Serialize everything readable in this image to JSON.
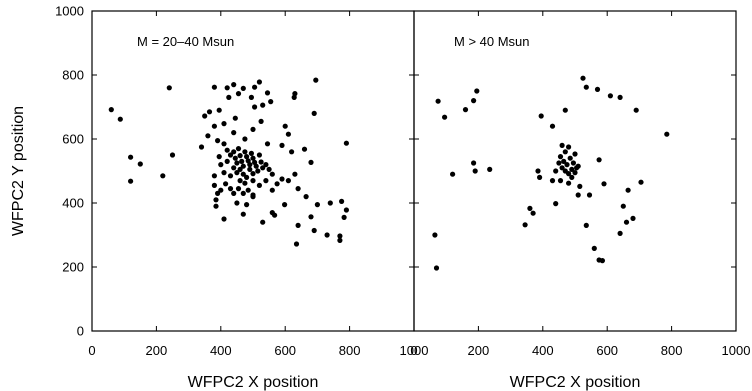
{
  "chart_data": [
    {
      "type": "scatter",
      "annotation": "M = 20–40 Msun",
      "xlabel": "WFPC2 X position",
      "ylabel": "WFPC2 Y position",
      "xlim": [
        0,
        1000
      ],
      "ylim": [
        0,
        1000
      ],
      "xticks": [
        "0",
        "200",
        "400",
        "600",
        "800",
        "1000"
      ],
      "yticks": [
        "0",
        "200",
        "400",
        "600",
        "800",
        "1000"
      ],
      "grid": false,
      "marker_color": "#000000",
      "points": [
        [
          60,
          692
        ],
        [
          88,
          662
        ],
        [
          240,
          760
        ],
        [
          350,
          672
        ],
        [
          380,
          762
        ],
        [
          420,
          760
        ],
        [
          425,
          730
        ],
        [
          440,
          770
        ],
        [
          455,
          742
        ],
        [
          470,
          758
        ],
        [
          505,
          762
        ],
        [
          520,
          778
        ],
        [
          545,
          744
        ],
        [
          495,
          730
        ],
        [
          505,
          700
        ],
        [
          530,
          706
        ],
        [
          555,
          717
        ],
        [
          630,
          742
        ],
        [
          628,
          730
        ],
        [
          695,
          784
        ],
        [
          690,
          680
        ],
        [
          395,
          690
        ],
        [
          365,
          685
        ],
        [
          380,
          640
        ],
        [
          410,
          648
        ],
        [
          445,
          665
        ],
        [
          440,
          620
        ],
        [
          500,
          630
        ],
        [
          525,
          655
        ],
        [
          600,
          640
        ],
        [
          610,
          615
        ],
        [
          120,
          543
        ],
        [
          150,
          522
        ],
        [
          250,
          550
        ],
        [
          220,
          485
        ],
        [
          120,
          468
        ],
        [
          340,
          575
        ],
        [
          360,
          610
        ],
        [
          390,
          595
        ],
        [
          410,
          585
        ],
        [
          475,
          600
        ],
        [
          545,
          585
        ],
        [
          590,
          580
        ],
        [
          620,
          560
        ],
        [
          660,
          568
        ],
        [
          680,
          527
        ],
        [
          790,
          587
        ],
        [
          420,
          565
        ],
        [
          430,
          550
        ],
        [
          440,
          560
        ],
        [
          445,
          540
        ],
        [
          450,
          525
        ],
        [
          455,
          570
        ],
        [
          460,
          548
        ],
        [
          465,
          530
        ],
        [
          470,
          515
        ],
        [
          475,
          560
        ],
        [
          480,
          545
        ],
        [
          485,
          532
        ],
        [
          490,
          520
        ],
        [
          495,
          555
        ],
        [
          500,
          540
        ],
        [
          505,
          527
        ],
        [
          510,
          515
        ],
        [
          515,
          500
        ],
        [
          520,
          550
        ],
        [
          525,
          528
        ],
        [
          530,
          510
        ],
        [
          440,
          510
        ],
        [
          450,
          495
        ],
        [
          460,
          505
        ],
        [
          470,
          490
        ],
        [
          480,
          480
        ],
        [
          490,
          505
        ],
        [
          500,
          492
        ],
        [
          460,
          470
        ],
        [
          475,
          462
        ],
        [
          500,
          470
        ],
        [
          430,
          485
        ],
        [
          410,
          495
        ],
        [
          400,
          520
        ],
        [
          395,
          545
        ],
        [
          420,
          530
        ],
        [
          540,
          520
        ],
        [
          550,
          505
        ],
        [
          560,
          490
        ],
        [
          380,
          485
        ],
        [
          380,
          455
        ],
        [
          390,
          430
        ],
        [
          400,
          440
        ],
        [
          415,
          460
        ],
        [
          430,
          445
        ],
        [
          440,
          430
        ],
        [
          455,
          445
        ],
        [
          470,
          430
        ],
        [
          485,
          440
        ],
        [
          500,
          425
        ],
        [
          520,
          455
        ],
        [
          540,
          470
        ],
        [
          560,
          440
        ],
        [
          575,
          460
        ],
        [
          590,
          475
        ],
        [
          610,
          470
        ],
        [
          630,
          490
        ],
        [
          640,
          445
        ],
        [
          665,
          420
        ],
        [
          700,
          395
        ],
        [
          740,
          400
        ],
        [
          775,
          405
        ],
        [
          790,
          378
        ],
        [
          783,
          355
        ],
        [
          770,
          297
        ],
        [
          770,
          283
        ],
        [
          730,
          300
        ],
        [
          690,
          314
        ],
        [
          680,
          357
        ],
        [
          640,
          330
        ],
        [
          635,
          272
        ],
        [
          598,
          395
        ],
        [
          560,
          370
        ],
        [
          567,
          362
        ],
        [
          530,
          340
        ],
        [
          470,
          365
        ],
        [
          480,
          395
        ],
        [
          450,
          400
        ],
        [
          500,
          420
        ],
        [
          410,
          350
        ],
        [
          385,
          390
        ],
        [
          385,
          410
        ]
      ]
    },
    {
      "type": "scatter",
      "annotation": "M > 40 Msun",
      "xlabel": "WFPC2 X position",
      "xlim": [
        0,
        1000
      ],
      "ylim": [
        0,
        1000
      ],
      "xticks": [
        "0",
        "200",
        "400",
        "600",
        "800",
        "1000"
      ],
      "grid": false,
      "marker_color": "#000000",
      "points": [
        [
          75,
          718
        ],
        [
          95,
          668
        ],
        [
          160,
          692
        ],
        [
          185,
          720
        ],
        [
          195,
          750
        ],
        [
          185,
          525
        ],
        [
          190,
          500
        ],
        [
          235,
          505
        ],
        [
          120,
          490
        ],
        [
          65,
          300
        ],
        [
          70,
          197
        ],
        [
          430,
          640
        ],
        [
          470,
          690
        ],
        [
          395,
          672
        ],
        [
          525,
          790
        ],
        [
          535,
          762
        ],
        [
          570,
          755
        ],
        [
          610,
          735
        ],
        [
          640,
          730
        ],
        [
          690,
          690
        ],
        [
          785,
          615
        ],
        [
          460,
          580
        ],
        [
          480,
          575
        ],
        [
          500,
          553
        ],
        [
          470,
          560
        ],
        [
          455,
          545
        ],
        [
          465,
          530
        ],
        [
          475,
          520
        ],
        [
          485,
          540
        ],
        [
          495,
          525
        ],
        [
          505,
          510
        ],
        [
          460,
          510
        ],
        [
          470,
          500
        ],
        [
          480,
          492
        ],
        [
          490,
          505
        ],
        [
          500,
          495
        ],
        [
          510,
          515
        ],
        [
          450,
          525
        ],
        [
          440,
          500
        ],
        [
          490,
          480
        ],
        [
          430,
          470
        ],
        [
          455,
          470
        ],
        [
          480,
          462
        ],
        [
          385,
          500
        ],
        [
          390,
          480
        ],
        [
          575,
          535
        ],
        [
          590,
          460
        ],
        [
          515,
          452
        ],
        [
          510,
          425
        ],
        [
          545,
          425
        ],
        [
          440,
          398
        ],
        [
          705,
          465
        ],
        [
          665,
          440
        ],
        [
          360,
          383
        ],
        [
          370,
          368
        ],
        [
          345,
          332
        ],
        [
          535,
          330
        ],
        [
          640,
          305
        ],
        [
          650,
          390
        ],
        [
          660,
          340
        ],
        [
          680,
          352
        ],
        [
          560,
          258
        ],
        [
          575,
          222
        ],
        [
          585,
          220
        ]
      ]
    }
  ]
}
